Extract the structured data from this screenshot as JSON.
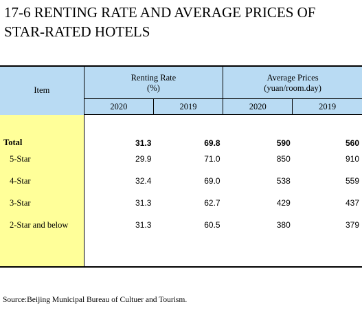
{
  "title": {
    "line1": "17-6  RENTING RATE AND AVERAGE PRICES OF",
    "line2": "STAR-RATED HOTELS"
  },
  "table": {
    "item_header": "Item",
    "renting_rate": {
      "label": "Renting Rate",
      "unit": "(%)"
    },
    "average_prices": {
      "label": "Average Prices",
      "unit": "(yuan/room.day)"
    },
    "years": [
      "2020",
      "2019",
      "2020",
      "2019"
    ],
    "rows": [
      {
        "item": "Total",
        "values": [
          "31.3",
          "69.8",
          "590",
          "560"
        ]
      },
      {
        "item": "5-Star",
        "values": [
          "29.9",
          "71.0",
          "850",
          "910"
        ]
      },
      {
        "item": "4-Star",
        "values": [
          "32.4",
          "69.0",
          "538",
          "559"
        ]
      },
      {
        "item": "3-Star",
        "values": [
          "31.3",
          "62.7",
          "429",
          "437"
        ]
      },
      {
        "item": "2-Star and below",
        "values": [
          "31.3",
          "60.5",
          "380",
          "379"
        ]
      }
    ]
  },
  "source": "Source:Beijing Municipal Bureau of Cultuer and Tourism.",
  "colors": {
    "header_bg": "#b9dbf3",
    "item_col_bg": "#ffff99"
  }
}
